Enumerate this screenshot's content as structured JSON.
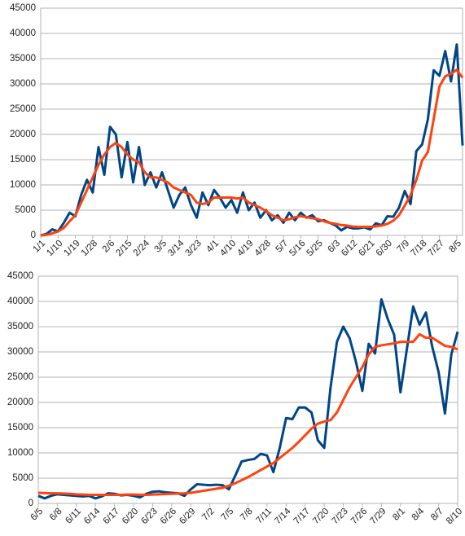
{
  "chart_data": [
    {
      "type": "line",
      "categories": [
        "1/1",
        null,
        null,
        "1/10",
        null,
        null,
        "1/19",
        null,
        null,
        "1/28",
        null,
        null,
        "2/6",
        null,
        null,
        "2/15",
        null,
        null,
        "2/24",
        null,
        null,
        "3/5",
        null,
        null,
        "3/14",
        null,
        null,
        "3/23",
        null,
        null,
        "4/1",
        null,
        null,
        "4/10",
        null,
        null,
        "4/19",
        null,
        null,
        "4/28",
        null,
        null,
        "5/7",
        null,
        null,
        "5/16",
        null,
        null,
        "5/25",
        null,
        null,
        "6/3",
        null,
        null,
        "6/12",
        null,
        null,
        "6/21",
        null,
        null,
        "6/30",
        null,
        null,
        "7/9",
        null,
        null,
        "7/18",
        null,
        null,
        "7/27",
        null,
        null,
        "8/5",
        null
      ],
      "series": [
        {
          "color": "#004586",
          "values": [
            0,
            300,
            1200,
            800,
            2500,
            4500,
            3800,
            8000,
            11000,
            8500,
            17500,
            12000,
            21500,
            20000,
            11500,
            18500,
            10500,
            17500,
            10000,
            12500,
            9500,
            12500,
            9000,
            5500,
            8000,
            9500,
            6000,
            3500,
            8500,
            6000,
            9000,
            7500,
            5500,
            7000,
            4500,
            8500,
            5000,
            6500,
            3500,
            5000,
            3000,
            4000,
            2500,
            4500,
            3000,
            4500,
            3500,
            4000,
            2800,
            3000,
            2500,
            2000,
            1000,
            1700,
            1400,
            1400,
            1600,
            1200,
            2400,
            2000,
            3800,
            3700,
            5500,
            8800,
            6200,
            16700,
            18000,
            23000,
            32700,
            31600,
            36500,
            30500,
            37800,
            17800
          ]
        },
        {
          "color": "#ff420e",
          "values": [
            0,
            100,
            400,
            800,
            1500,
            2800,
            4000,
            6500,
            9000,
            11500,
            14000,
            16000,
            17500,
            18300,
            17500,
            16000,
            15000,
            14500,
            12500,
            11500,
            11500,
            11000,
            10500,
            9500,
            9000,
            8500,
            8000,
            6500,
            6200,
            6500,
            7500,
            7500,
            7500,
            7500,
            7300,
            7500,
            6500,
            6000,
            5500,
            4800,
            4000,
            3500,
            3000,
            3200,
            3600,
            3800,
            3600,
            3400,
            3200,
            2800,
            2500,
            2300,
            2050,
            1950,
            1750,
            1700,
            1700,
            1700,
            1800,
            1950,
            2300,
            2900,
            4000,
            5900,
            8000,
            11000,
            14800,
            16500,
            23000,
            29500,
            31500,
            32000,
            32800,
            31200
          ]
        }
      ],
      "ylim": [
        0,
        45000
      ],
      "yticks": [
        0,
        5000,
        10000,
        15000,
        20000,
        25000,
        30000,
        35000,
        40000,
        45000
      ],
      "grid": true
    },
    {
      "type": "line",
      "categories": [
        "6/5",
        null,
        null,
        "6/8",
        null,
        null,
        "6/11",
        null,
        null,
        "6/14",
        null,
        null,
        "6/17",
        null,
        null,
        "6/20",
        null,
        null,
        "6/23",
        null,
        null,
        "6/26",
        null,
        null,
        "6/29",
        null,
        null,
        "7/2",
        null,
        null,
        "7/5",
        null,
        null,
        "7/8",
        null,
        null,
        "7/11",
        null,
        null,
        "7/14",
        null,
        null,
        "7/17",
        null,
        null,
        "7/20",
        null,
        null,
        "7/23",
        null,
        null,
        "7/26",
        null,
        null,
        "7/29",
        null,
        null,
        "8/1",
        null,
        null,
        "8/4",
        null,
        null,
        "8/7",
        null,
        null,
        "8/10"
      ],
      "series": [
        {
          "color": "#004586",
          "values": [
            1500,
            1000,
            1500,
            1800,
            1700,
            1600,
            1500,
            1400,
            1500,
            1000,
            1400,
            2000,
            1900,
            1600,
            1700,
            1500,
            1200,
            1900,
            2300,
            2400,
            2200,
            2100,
            2000,
            1500,
            2800,
            3800,
            3700,
            3600,
            3700,
            3600,
            2800,
            5500,
            8300,
            8600,
            8800,
            9800,
            9500,
            6200,
            11000,
            16900,
            16700,
            19000,
            19000,
            18000,
            12500,
            11000,
            23000,
            32000,
            35000,
            32700,
            28000,
            22300,
            31600,
            29700,
            40400,
            36500,
            33400,
            22000,
            30500,
            39000,
            35400,
            37800,
            31000,
            26000,
            17800,
            29500,
            34000
          ]
        },
        {
          "color": "#ff420e",
          "values": [
            2100,
            2050,
            2000,
            2000,
            1950,
            1900,
            1800,
            1750,
            1700,
            1700,
            1700,
            1700,
            1700,
            1700,
            1750,
            1750,
            1700,
            1700,
            1750,
            1800,
            1850,
            1900,
            1950,
            2000,
            2100,
            2300,
            2500,
            2700,
            2900,
            3100,
            3500,
            4000,
            4600,
            5200,
            5900,
            6600,
            7300,
            8000,
            9000,
            10000,
            11000,
            12200,
            13500,
            14800,
            15800,
            16200,
            16500,
            18000,
            20500,
            23000,
            25000,
            27000,
            29500,
            31000,
            31300,
            31500,
            31700,
            32000,
            32000,
            32000,
            33500,
            32800,
            32800,
            32000,
            31200,
            31000,
            30500
          ]
        }
      ],
      "ylim": [
        0,
        45000
      ],
      "yticks": [
        0,
        5000,
        10000,
        15000,
        20000,
        25000,
        30000,
        35000,
        40000,
        45000
      ],
      "grid": true
    }
  ]
}
